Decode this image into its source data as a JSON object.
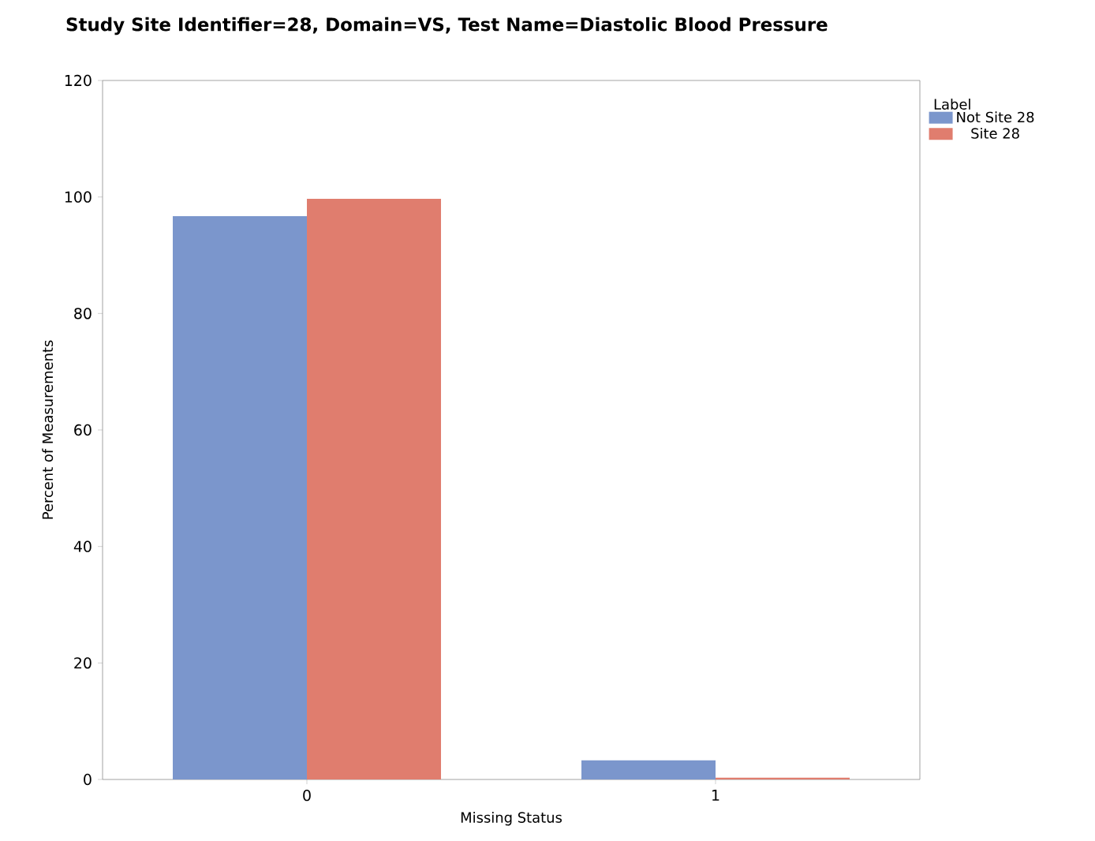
{
  "chart_data": {
    "type": "bar",
    "title": "Study Site Identifier=28, Domain=VS, Test Name=Diastolic Blood Pressure",
    "xlabel": "Missing Status",
    "ylabel": "Percent of Measurements",
    "legend_title": "Label",
    "categories": [
      "0",
      "1"
    ],
    "series": [
      {
        "name": "Not Site 28",
        "color": "#7b96cc",
        "values": [
          96.7,
          3.3
        ]
      },
      {
        "name": "Site 28",
        "color": "#e07d6e",
        "values": [
          99.7,
          0.3
        ]
      }
    ],
    "ylim": [
      0,
      120
    ],
    "yticks": [
      0,
      20,
      40,
      60,
      80,
      100,
      120
    ],
    "grid": false,
    "legend": "top right"
  }
}
